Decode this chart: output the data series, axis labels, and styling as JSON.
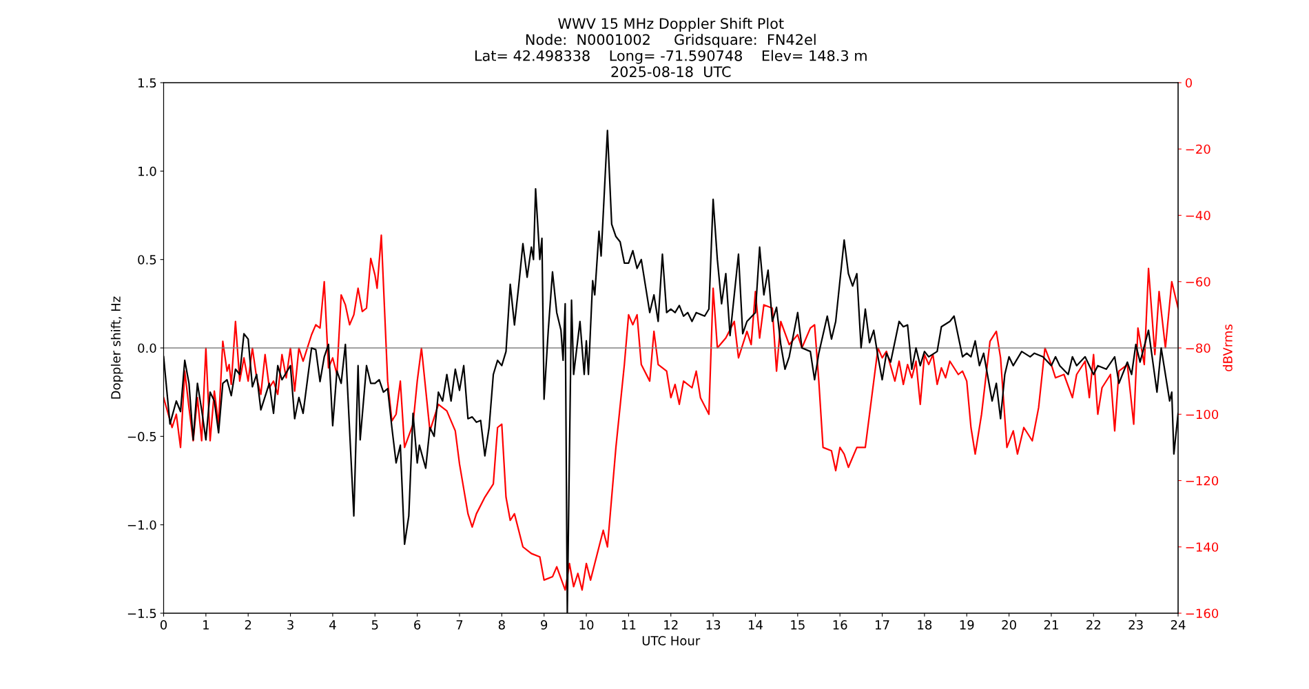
{
  "chart_data": {
    "type": "line",
    "title": "WWV 15 MHz Doppler Shift Plot\nNode:  N0001002     Gridsquare:  FN42el\nLat= 42.498338    Long= -71.590748    Elev= 148.3 m\n2025-08-18  UTC",
    "xlabel": "UTC Hour",
    "ylabel": "Doppler shift, Hz",
    "y2label": "dBVrms",
    "xlim": [
      0,
      24
    ],
    "xticks": [
      0,
      1,
      2,
      3,
      4,
      5,
      6,
      7,
      8,
      9,
      10,
      11,
      12,
      13,
      14,
      15,
      16,
      17,
      18,
      19,
      20,
      21,
      22,
      23,
      24
    ],
    "ylim": [
      -1.5,
      1.5
    ],
    "yticks": [
      {
        "value": -1.5,
        "label": "−1.5"
      },
      {
        "value": -1.0,
        "label": "−1.0"
      },
      {
        "value": -0.5,
        "label": "−0.5"
      },
      {
        "value": 0.0,
        "label": "0.0"
      },
      {
        "value": 0.5,
        "label": "0.5"
      },
      {
        "value": 1.0,
        "label": "1.0"
      },
      {
        "value": 1.5,
        "label": "1.5"
      }
    ],
    "y2lim": [
      -160,
      0
    ],
    "y2ticks": [
      {
        "value": -160,
        "label": "−160"
      },
      {
        "value": -140,
        "label": "−140"
      },
      {
        "value": -120,
        "label": "−120"
      },
      {
        "value": -100,
        "label": "−100"
      },
      {
        "value": -80,
        "label": "−80"
      },
      {
        "value": -60,
        "label": "−60"
      },
      {
        "value": -40,
        "label": "−40"
      },
      {
        "value": -20,
        "label": "−20"
      },
      0
    ],
    "grid": false,
    "ref_lines": [
      {
        "axis": "y",
        "value": 0,
        "color": "#808080"
      }
    ],
    "series": [
      {
        "color": "#000000",
        "axis": "y",
        "x": [
          0,
          0.15,
          0.3,
          0.4,
          0.5,
          0.6,
          0.7,
          0.8,
          0.9,
          1.0,
          1.1,
          1.2,
          1.3,
          1.4,
          1.5,
          1.6,
          1.7,
          1.8,
          1.9,
          2.0,
          2.1,
          2.2,
          2.3,
          2.5,
          2.6,
          2.7,
          2.8,
          3.0,
          3.1,
          3.2,
          3.3,
          3.5,
          3.6,
          3.7,
          3.8,
          3.9,
          4.0,
          4.1,
          4.2,
          4.3,
          4.5,
          4.6,
          4.65,
          4.8,
          4.9,
          5.0,
          5.1,
          5.2,
          5.3,
          5.4,
          5.5,
          5.6,
          5.7,
          5.8,
          5.9,
          6.0,
          6.05,
          6.2,
          6.3,
          6.4,
          6.5,
          6.6,
          6.7,
          6.8,
          6.9,
          7.0,
          7.1,
          7.2,
          7.3,
          7.4,
          7.5,
          7.6,
          7.7,
          7.8,
          7.9,
          8.0,
          8.1,
          8.2,
          8.3,
          8.4,
          8.5,
          8.6,
          8.7,
          8.75,
          8.8,
          8.9,
          8.95,
          9.0,
          9.1,
          9.2,
          9.3,
          9.4,
          9.45,
          9.5,
          9.55,
          9.65,
          9.7,
          9.8,
          9.85,
          9.95,
          10.0,
          10.05,
          10.15,
          10.2,
          10.3,
          10.35,
          10.5,
          10.6,
          10.7,
          10.8,
          10.9,
          11.0,
          11.1,
          11.2,
          11.3,
          11.4,
          11.5,
          11.6,
          11.7,
          11.8,
          11.9,
          12.0,
          12.1,
          12.2,
          12.3,
          12.4,
          12.5,
          12.6,
          12.8,
          12.9,
          13.0,
          13.1,
          13.2,
          13.3,
          13.4,
          13.6,
          13.7,
          13.8,
          14.0,
          14.1,
          14.2,
          14.3,
          14.4,
          14.5,
          14.6,
          14.7,
          14.8,
          15.0,
          15.1,
          15.3,
          15.4,
          15.5,
          15.7,
          15.8,
          15.9,
          16.1,
          16.2,
          16.3,
          16.4,
          16.5,
          16.6,
          16.7,
          16.8,
          16.9,
          17.0,
          17.1,
          17.2,
          17.4,
          17.5,
          17.6,
          17.7,
          17.8,
          17.9,
          18.0,
          18.1,
          18.3,
          18.4,
          18.6,
          18.7,
          18.9,
          19.0,
          19.1,
          19.2,
          19.3,
          19.4,
          19.6,
          19.7,
          19.8,
          19.9,
          20.0,
          20.1,
          20.3,
          20.5,
          20.6,
          20.8,
          21.0,
          21.1,
          21.2,
          21.4,
          21.5,
          21.6,
          21.8,
          22.0,
          22.1,
          22.3,
          22.5,
          22.6,
          22.8,
          22.9,
          23.0,
          23.1,
          23.3,
          23.5,
          23.6,
          23.8,
          23.85,
          23.9,
          24.0
        ],
        "values": [
          -0.05,
          -0.43,
          -0.3,
          -0.36,
          -0.07,
          -0.2,
          -0.52,
          -0.2,
          -0.35,
          -0.52,
          -0.25,
          -0.3,
          -0.48,
          -0.2,
          -0.18,
          -0.27,
          -0.12,
          -0.15,
          0.08,
          0.05,
          -0.22,
          -0.15,
          -0.35,
          -0.2,
          -0.37,
          -0.1,
          -0.18,
          -0.1,
          -0.4,
          -0.28,
          -0.37,
          0.0,
          -0.01,
          -0.19,
          -0.05,
          0.02,
          -0.44,
          -0.13,
          -0.2,
          0.02,
          -0.95,
          -0.1,
          -0.52,
          -0.1,
          -0.2,
          -0.2,
          -0.18,
          -0.25,
          -0.23,
          -0.45,
          -0.65,
          -0.55,
          -1.11,
          -0.95,
          -0.37,
          -0.65,
          -0.55,
          -0.68,
          -0.45,
          -0.5,
          -0.25,
          -0.3,
          -0.15,
          -0.3,
          -0.12,
          -0.24,
          -0.1,
          -0.4,
          -0.39,
          -0.42,
          -0.41,
          -0.61,
          -0.45,
          -0.15,
          -0.07,
          -0.1,
          -0.02,
          0.36,
          0.13,
          0.35,
          0.59,
          0.4,
          0.57,
          0.5,
          0.9,
          0.5,
          0.62,
          -0.29,
          0.1,
          0.43,
          0.2,
          0.1,
          -0.07,
          0.25,
          -1.5,
          0.27,
          -0.15,
          0.05,
          0.15,
          -0.15,
          0.04,
          -0.15,
          0.38,
          0.3,
          0.66,
          0.52,
          1.23,
          0.7,
          0.63,
          0.6,
          0.48,
          0.48,
          0.55,
          0.45,
          0.5,
          0.35,
          0.2,
          0.3,
          0.15,
          0.53,
          0.2,
          0.22,
          0.2,
          0.24,
          0.18,
          0.2,
          0.15,
          0.2,
          0.18,
          0.22,
          0.84,
          0.5,
          0.25,
          0.42,
          0.07,
          0.53,
          0.08,
          0.15,
          0.2,
          0.57,
          0.3,
          0.44,
          0.15,
          0.23,
          0.02,
          -0.12,
          -0.05,
          0.2,
          0.0,
          -0.02,
          -0.18,
          -0.03,
          0.18,
          0.05,
          0.15,
          0.61,
          0.42,
          0.35,
          0.42,
          0.0,
          0.22,
          0.03,
          0.1,
          -0.05,
          -0.18,
          -0.03,
          -0.08,
          0.15,
          0.12,
          0.13,
          -0.12,
          0.0,
          -0.1,
          -0.02,
          -0.05,
          -0.02,
          0.12,
          0.15,
          0.18,
          -0.05,
          -0.03,
          -0.05,
          0.04,
          -0.1,
          -0.03,
          -0.3,
          -0.2,
          -0.4,
          -0.15,
          -0.05,
          -0.1,
          -0.02,
          -0.05,
          -0.03,
          -0.05,
          -0.1,
          -0.05,
          -0.1,
          -0.15,
          -0.05,
          -0.1,
          -0.05,
          -0.15,
          -0.1,
          -0.12,
          -0.05,
          -0.2,
          -0.08,
          -0.15,
          0.02,
          -0.08,
          0.1,
          -0.25,
          0.0,
          -0.3,
          -0.25,
          -0.6,
          -0.37
        ]
      },
      {
        "color": "#ff0000",
        "axis": "y2",
        "x": [
          0,
          0.2,
          0.3,
          0.4,
          0.5,
          0.6,
          0.7,
          0.8,
          0.9,
          1.0,
          1.1,
          1.2,
          1.3,
          1.4,
          1.5,
          1.55,
          1.6,
          1.7,
          1.8,
          1.9,
          2.0,
          2.1,
          2.2,
          2.3,
          2.4,
          2.5,
          2.6,
          2.7,
          2.8,
          2.9,
          3.0,
          3.1,
          3.2,
          3.3,
          3.5,
          3.6,
          3.7,
          3.8,
          3.9,
          4.0,
          4.1,
          4.2,
          4.3,
          4.4,
          4.5,
          4.6,
          4.7,
          4.8,
          4.9,
          5.0,
          5.05,
          5.15,
          5.3,
          5.4,
          5.5,
          5.6,
          5.7,
          5.9,
          6.0,
          6.1,
          6.3,
          6.5,
          6.7,
          6.9,
          7.0,
          7.2,
          7.3,
          7.4,
          7.6,
          7.8,
          7.9,
          8.0,
          8.1,
          8.2,
          8.3,
          8.5,
          8.7,
          8.9,
          9.0,
          9.2,
          9.3,
          9.5,
          9.6,
          9.7,
          9.8,
          9.9,
          10.0,
          10.1,
          10.2,
          10.4,
          10.5,
          10.7,
          10.9,
          11.0,
          11.1,
          11.2,
          11.3,
          11.5,
          11.6,
          11.7,
          11.9,
          12.0,
          12.1,
          12.2,
          12.3,
          12.5,
          12.6,
          12.7,
          12.9,
          13.0,
          13.1,
          13.3,
          13.5,
          13.6,
          13.8,
          13.9,
          14.0,
          14.1,
          14.2,
          14.4,
          14.5,
          14.6,
          14.8,
          15.0,
          15.1,
          15.3,
          15.4,
          15.5,
          15.6,
          15.8,
          15.9,
          16.0,
          16.1,
          16.2,
          16.4,
          16.6,
          16.8,
          16.9,
          17.0,
          17.1,
          17.3,
          17.4,
          17.5,
          17.6,
          17.7,
          17.8,
          17.9,
          18.0,
          18.1,
          18.2,
          18.3,
          18.4,
          18.5,
          18.6,
          18.8,
          18.9,
          19.0,
          19.1,
          19.2,
          19.35,
          19.55,
          19.7,
          19.8,
          19.95,
          20.1,
          20.2,
          20.35,
          20.55,
          20.7,
          20.85,
          21.0,
          21.1,
          21.3,
          21.5,
          21.6,
          21.8,
          21.9,
          22.0,
          22.1,
          22.2,
          22.4,
          22.5,
          22.6,
          22.8,
          22.95,
          23.05,
          23.2,
          23.3,
          23.45,
          23.55,
          23.7,
          23.85,
          24.0
        ],
        "values": [
          -95,
          -104,
          -100,
          -110,
          -87,
          -98,
          -108,
          -95,
          -108,
          -80,
          -108,
          -93,
          -103,
          -78,
          -87,
          -85,
          -91,
          -72,
          -90,
          -83,
          -90,
          -80,
          -89,
          -94,
          -82,
          -92,
          -90,
          -94,
          -82,
          -89,
          -80,
          -93,
          -80,
          -84,
          -76,
          -73,
          -74,
          -60,
          -86,
          -83,
          -88,
          -64,
          -67,
          -73,
          -70,
          -62,
          -69,
          -68,
          -53,
          -58,
          -62,
          -46,
          -90,
          -102,
          -100,
          -90,
          -110,
          -103,
          -90,
          -80,
          -105,
          -97,
          -99,
          -105,
          -115,
          -130,
          -134,
          -130,
          -125,
          -121,
          -104,
          -103,
          -125,
          -132,
          -130,
          -140,
          -142,
          -143,
          -150,
          -149,
          -146,
          -153,
          -145,
          -152,
          -148,
          -153,
          -145,
          -150,
          -145,
          -135,
          -140,
          -110,
          -85,
          -70,
          -73,
          -70,
          -85,
          -90,
          -75,
          -85,
          -87,
          -95,
          -91,
          -97,
          -90,
          -92,
          -87,
          -95,
          -100,
          -62,
          -80,
          -77,
          -72,
          -83,
          -75,
          -79,
          -63,
          -77,
          -67,
          -68,
          -87,
          -72,
          -79,
          -76,
          -80,
          -74,
          -73,
          -90,
          -110,
          -111,
          -117,
          -110,
          -112,
          -116,
          -110,
          -110,
          -90,
          -80,
          -83,
          -81,
          -90,
          -84,
          -91,
          -85,
          -89,
          -84,
          -97,
          -82,
          -85,
          -82,
          -91,
          -86,
          -89,
          -84,
          -88,
          -87,
          -90,
          -104,
          -112,
          -100,
          -78,
          -75,
          -83,
          -110,
          -105,
          -112,
          -104,
          -108,
          -98,
          -80,
          -85,
          -89,
          -88,
          -95,
          -88,
          -84,
          -95,
          -82,
          -100,
          -92,
          -88,
          -105,
          -87,
          -85,
          -103,
          -74,
          -85,
          -56,
          -82,
          -63,
          -80,
          -60,
          -68
        ]
      }
    ]
  }
}
